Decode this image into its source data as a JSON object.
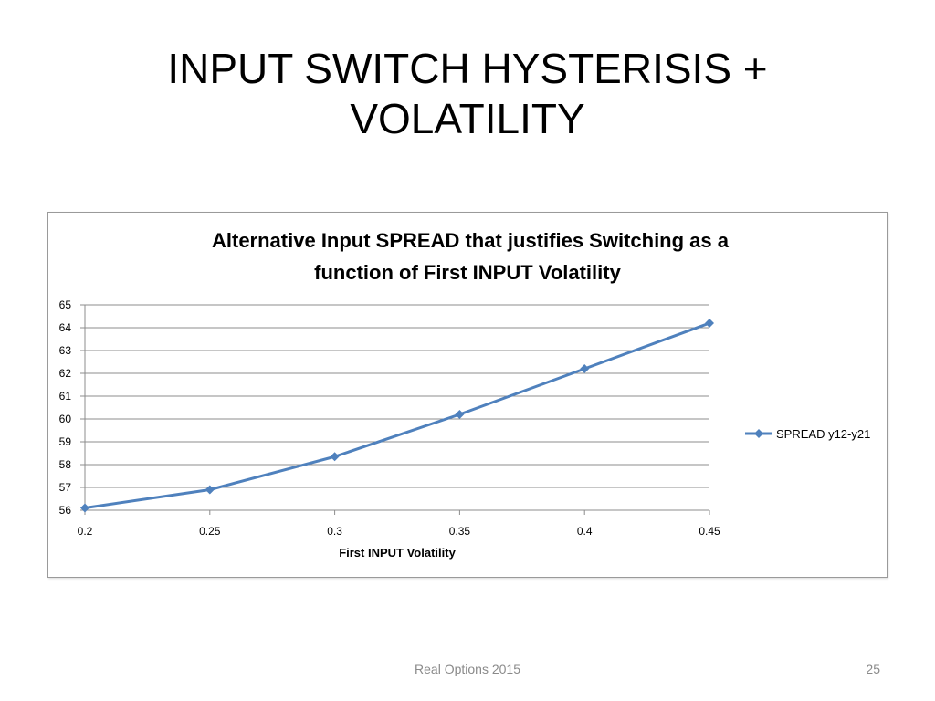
{
  "slide": {
    "title_line1": "INPUT SWITCH HYSTERISIS +",
    "title_line2": "VOLATILITY",
    "footer": "Real Options 2015",
    "page_number": "25"
  },
  "chart_data": {
    "type": "line",
    "title_line1": "Alternative Input SPREAD that justifies Switching as a",
    "title_line2": "function of First INPUT Volatility",
    "xlabel": "First INPUT Volatility",
    "ylabel": "",
    "x": [
      0.2,
      0.25,
      0.3,
      0.35,
      0.4,
      0.45
    ],
    "x_tick_labels": [
      "0.2",
      "0.25",
      "0.3",
      "0.35",
      "0.4",
      "0.45"
    ],
    "xlim": [
      0.2,
      0.45
    ],
    "ylim": [
      56,
      65
    ],
    "y_ticks": [
      56,
      57,
      58,
      59,
      60,
      61,
      62,
      63,
      64,
      65
    ],
    "grid": true,
    "legend_position": "right",
    "series": [
      {
        "name": "SPREAD y12-y21",
        "values": [
          56.1,
          56.9,
          58.35,
          60.2,
          62.2,
          64.2
        ],
        "color": "#4f81bd"
      }
    ]
  }
}
